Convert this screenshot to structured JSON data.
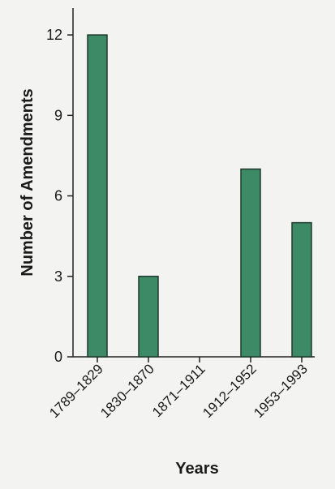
{
  "chart_data": {
    "type": "bar",
    "categories": [
      "1789–1829",
      "1830–1870",
      "1871–1911",
      "1912–1952",
      "1953–1993"
    ],
    "values": [
      12,
      3,
      0,
      7,
      5
    ],
    "xlabel": "Years",
    "ylabel": "Number of Amendments",
    "ylim": [
      0,
      13
    ],
    "yticks": [
      0,
      3,
      6,
      9,
      12
    ],
    "grid": false,
    "bar_color": "#3d8a66"
  }
}
